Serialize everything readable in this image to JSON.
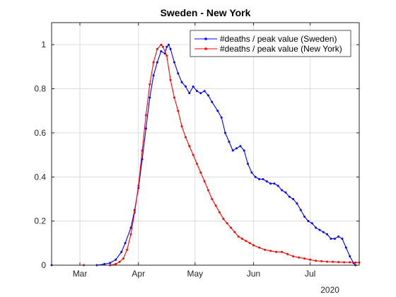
{
  "chart_data": {
    "type": "line",
    "title": "Sweden - New York",
    "xlabel": "",
    "ylabel": "",
    "x_axis_kind": "date",
    "xlim": [
      "2020-02-15",
      "2020-07-27"
    ],
    "ylim": [
      0,
      1.1
    ],
    "x_ticks": [
      {
        "date": "2020-03-01",
        "label": "Mar"
      },
      {
        "date": "2020-04-01",
        "label": "Apr"
      },
      {
        "date": "2020-05-01",
        "label": "May"
      },
      {
        "date": "2020-06-01",
        "label": "Jun"
      },
      {
        "date": "2020-07-01",
        "label": "Jul"
      }
    ],
    "x_secondary_label": "2020",
    "y_ticks": [
      0,
      0.2,
      0.4,
      0.6,
      0.8,
      1
    ],
    "y_tick_labels": [
      "0",
      "0.2",
      "0.4",
      "0.6",
      "0.8",
      "1"
    ],
    "grid": true,
    "legend_position": "top-right",
    "series": [
      {
        "name": "#deaths / peak value (Sweden)",
        "color": "#0000ff",
        "marker": "dot",
        "points": [
          [
            "2020-02-15",
            0
          ],
          [
            "2020-03-10",
            0
          ],
          [
            "2020-03-14",
            0.005
          ],
          [
            "2020-03-17",
            0.01
          ],
          [
            "2020-03-20",
            0.025
          ],
          [
            "2020-03-23",
            0.06
          ],
          [
            "2020-03-25",
            0.1
          ],
          [
            "2020-03-28",
            0.17
          ],
          [
            "2020-03-30",
            0.25
          ],
          [
            "2020-04-01",
            0.35
          ],
          [
            "2020-04-03",
            0.48
          ],
          [
            "2020-04-05",
            0.62
          ],
          [
            "2020-04-07",
            0.76
          ],
          [
            "2020-04-09",
            0.86
          ],
          [
            "2020-04-11",
            0.92
          ],
          [
            "2020-04-13",
            0.97
          ],
          [
            "2020-04-15",
            0.96
          ],
          [
            "2020-04-16",
            0.99
          ],
          [
            "2020-04-17",
            1.0
          ],
          [
            "2020-04-18",
            0.98
          ],
          [
            "2020-04-20",
            0.92
          ],
          [
            "2020-04-22",
            0.87
          ],
          [
            "2020-04-24",
            0.83
          ],
          [
            "2020-04-26",
            0.81
          ],
          [
            "2020-04-28",
            0.78
          ],
          [
            "2020-04-30",
            0.81
          ],
          [
            "2020-05-02",
            0.79
          ],
          [
            "2020-05-04",
            0.78
          ],
          [
            "2020-05-06",
            0.79
          ],
          [
            "2020-05-08",
            0.77
          ],
          [
            "2020-05-10",
            0.74
          ],
          [
            "2020-05-13",
            0.7
          ],
          [
            "2020-05-15",
            0.67
          ],
          [
            "2020-05-17",
            0.6
          ],
          [
            "2020-05-19",
            0.56
          ],
          [
            "2020-05-21",
            0.52
          ],
          [
            "2020-05-23",
            0.53
          ],
          [
            "2020-05-25",
            0.54
          ],
          [
            "2020-05-27",
            0.52
          ],
          [
            "2020-05-29",
            0.46
          ],
          [
            "2020-05-31",
            0.42
          ],
          [
            "2020-06-02",
            0.4
          ],
          [
            "2020-06-04",
            0.39
          ],
          [
            "2020-06-06",
            0.39
          ],
          [
            "2020-06-08",
            0.38
          ],
          [
            "2020-06-10",
            0.37
          ],
          [
            "2020-06-12",
            0.37
          ],
          [
            "2020-06-14",
            0.36
          ],
          [
            "2020-06-16",
            0.34
          ],
          [
            "2020-06-18",
            0.33
          ],
          [
            "2020-06-20",
            0.31
          ],
          [
            "2020-06-22",
            0.3
          ],
          [
            "2020-06-24",
            0.28
          ],
          [
            "2020-06-26",
            0.25
          ],
          [
            "2020-06-28",
            0.22
          ],
          [
            "2020-06-30",
            0.2
          ],
          [
            "2020-07-02",
            0.19
          ],
          [
            "2020-07-04",
            0.17
          ],
          [
            "2020-07-06",
            0.16
          ],
          [
            "2020-07-08",
            0.15
          ],
          [
            "2020-07-10",
            0.14
          ],
          [
            "2020-07-12",
            0.12
          ],
          [
            "2020-07-14",
            0.12
          ],
          [
            "2020-07-16",
            0.13
          ],
          [
            "2020-07-18",
            0.12
          ],
          [
            "2020-07-20",
            0.08
          ],
          [
            "2020-07-22",
            0.04
          ],
          [
            "2020-07-24",
            0.01
          ],
          [
            "2020-07-25",
            0.0
          ]
        ]
      },
      {
        "name": "#deaths / peak value (New York)",
        "color": "#ff0000",
        "marker": "dot",
        "points": [
          [
            "2020-03-03",
            0
          ],
          [
            "2020-03-17",
            0
          ],
          [
            "2020-03-20",
            0.005
          ],
          [
            "2020-03-22",
            0.015
          ],
          [
            "2020-03-24",
            0.03
          ],
          [
            "2020-03-26",
            0.07
          ],
          [
            "2020-03-28",
            0.14
          ],
          [
            "2020-03-30",
            0.24
          ],
          [
            "2020-04-01",
            0.36
          ],
          [
            "2020-04-03",
            0.52
          ],
          [
            "2020-04-05",
            0.68
          ],
          [
            "2020-04-07",
            0.82
          ],
          [
            "2020-04-09",
            0.92
          ],
          [
            "2020-04-11",
            0.98
          ],
          [
            "2020-04-13",
            1.0
          ],
          [
            "2020-04-14",
            0.99
          ],
          [
            "2020-04-16",
            0.95
          ],
          [
            "2020-04-18",
            0.84
          ],
          [
            "2020-04-20",
            0.76
          ],
          [
            "2020-04-22",
            0.7
          ],
          [
            "2020-04-24",
            0.63
          ],
          [
            "2020-04-26",
            0.58
          ],
          [
            "2020-04-28",
            0.54
          ],
          [
            "2020-04-30",
            0.5
          ],
          [
            "2020-05-02",
            0.46
          ],
          [
            "2020-05-04",
            0.42
          ],
          [
            "2020-05-06",
            0.38
          ],
          [
            "2020-05-08",
            0.34
          ],
          [
            "2020-05-10",
            0.3
          ],
          [
            "2020-05-12",
            0.27
          ],
          [
            "2020-05-14",
            0.24
          ],
          [
            "2020-05-16",
            0.21
          ],
          [
            "2020-05-18",
            0.19
          ],
          [
            "2020-05-20",
            0.17
          ],
          [
            "2020-05-22",
            0.15
          ],
          [
            "2020-05-24",
            0.13
          ],
          [
            "2020-05-26",
            0.12
          ],
          [
            "2020-05-28",
            0.11
          ],
          [
            "2020-05-30",
            0.1
          ],
          [
            "2020-06-01",
            0.09
          ],
          [
            "2020-06-04",
            0.08
          ],
          [
            "2020-06-07",
            0.07
          ],
          [
            "2020-06-10",
            0.065
          ],
          [
            "2020-06-13",
            0.06
          ],
          [
            "2020-06-16",
            0.06
          ],
          [
            "2020-06-19",
            0.05
          ],
          [
            "2020-06-22",
            0.04
          ],
          [
            "2020-06-25",
            0.035
          ],
          [
            "2020-06-28",
            0.03
          ],
          [
            "2020-07-01",
            0.025
          ],
          [
            "2020-07-04",
            0.02
          ],
          [
            "2020-07-07",
            0.018
          ],
          [
            "2020-07-10",
            0.016
          ],
          [
            "2020-07-13",
            0.015
          ],
          [
            "2020-07-16",
            0.014
          ],
          [
            "2020-07-19",
            0.013
          ],
          [
            "2020-07-22",
            0.013
          ],
          [
            "2020-07-25",
            0.012
          ],
          [
            "2020-07-27",
            0.012
          ]
        ]
      }
    ]
  }
}
